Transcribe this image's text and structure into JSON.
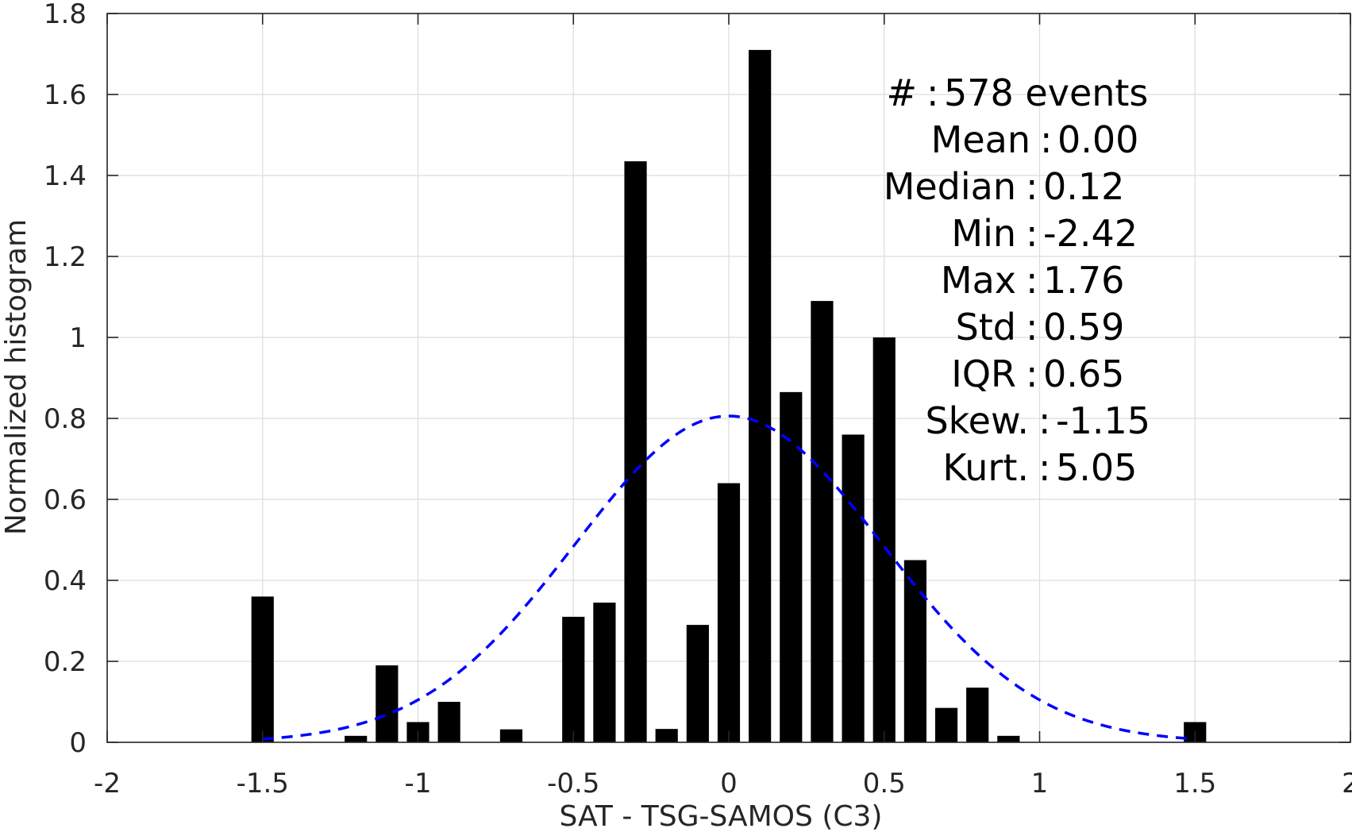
{
  "chart_data": {
    "type": "bar",
    "xlabel": "SAT - TSG-SAMOS (C3)",
    "ylabel": "Normalized histogram",
    "xlim": [
      -2,
      2
    ],
    "ylim": [
      0,
      1.8
    ],
    "grid": true,
    "x_ticks": [
      "-2",
      "-1.5",
      "-1",
      "-0.5",
      "0",
      "0.5",
      "1",
      "1.5",
      "2"
    ],
    "y_ticks": [
      "0",
      "0.2",
      "0.4",
      "0.6",
      "0.8",
      "1",
      "1.2",
      "1.4",
      "1.6",
      "1.8"
    ],
    "bar_color": "#000000",
    "bin_width": 0.1,
    "bars": [
      {
        "x": -1.5,
        "value": 0.36
      },
      {
        "x": -1.2,
        "value": 0.016
      },
      {
        "x": -1.1,
        "value": 0.19
      },
      {
        "x": -1.0,
        "value": 0.05
      },
      {
        "x": -0.9,
        "value": 0.1
      },
      {
        "x": -0.7,
        "value": 0.032
      },
      {
        "x": -0.5,
        "value": 0.31
      },
      {
        "x": -0.4,
        "value": 0.345
      },
      {
        "x": -0.3,
        "value": 1.435
      },
      {
        "x": -0.2,
        "value": 0.033
      },
      {
        "x": -0.1,
        "value": 0.29
      },
      {
        "x": 0.0,
        "value": 0.64
      },
      {
        "x": 0.1,
        "value": 1.71
      },
      {
        "x": 0.2,
        "value": 0.865
      },
      {
        "x": 0.3,
        "value": 1.09
      },
      {
        "x": 0.4,
        "value": 0.76
      },
      {
        "x": 0.5,
        "value": 1.0
      },
      {
        "x": 0.6,
        "value": 0.45
      },
      {
        "x": 0.7,
        "value": 0.085
      },
      {
        "x": 0.8,
        "value": 0.135
      },
      {
        "x": 0.9,
        "value": 0.016
      },
      {
        "x": 1.5,
        "value": 0.05
      }
    ],
    "fit_curve": {
      "style": "dashed",
      "color": "#0000ff",
      "distribution": "normal",
      "mean": 0.0,
      "std": 0.495,
      "x_range": [
        -1.5,
        1.5
      ]
    },
    "stats": [
      {
        "label": "#",
        "value": "578 events"
      },
      {
        "label": "Mean",
        "value": "0.00"
      },
      {
        "label": "Median",
        "value": "0.12"
      },
      {
        "label": "Min",
        "value": "-2.42"
      },
      {
        "label": "Max",
        "value": "1.76"
      },
      {
        "label": "Std",
        "value": "0.59"
      },
      {
        "label": "IQR",
        "value": "0.65"
      },
      {
        "label": "Skew.",
        "value": "-1.15"
      },
      {
        "label": "Kurt.",
        "value": "5.05"
      }
    ]
  }
}
